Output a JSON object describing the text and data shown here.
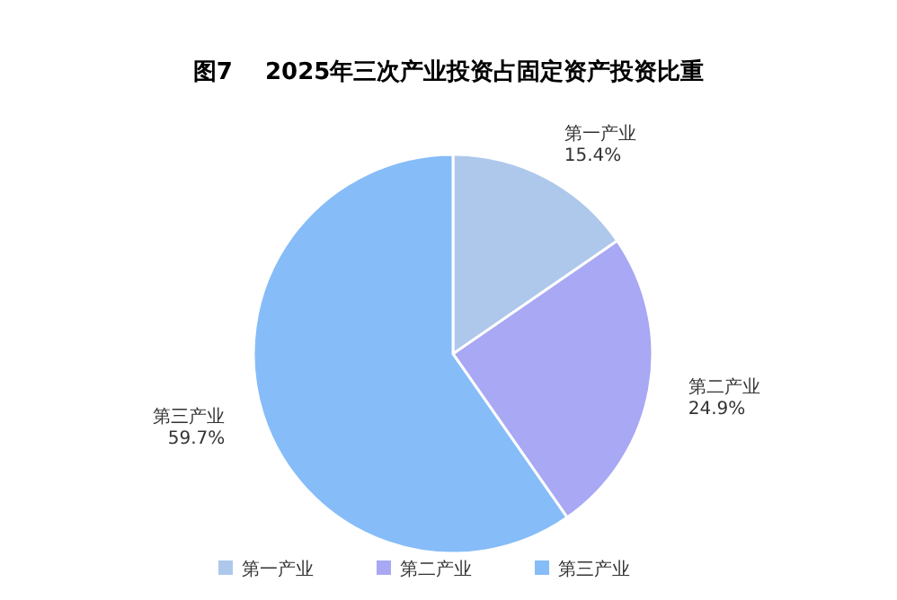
{
  "chart_data": {
    "type": "pie",
    "title": "图7    2025年三次产业投资占固定资产投资比重",
    "categories": [
      "第一产业",
      "第二产业",
      "第三产业"
    ],
    "values": [
      15.4,
      24.9,
      59.7
    ],
    "value_labels": [
      "15.4%",
      "24.9%",
      "59.7%"
    ],
    "colors": [
      "#aec8ec",
      "#a8a8f4",
      "#86bcf8"
    ],
    "legend": "bottom"
  }
}
